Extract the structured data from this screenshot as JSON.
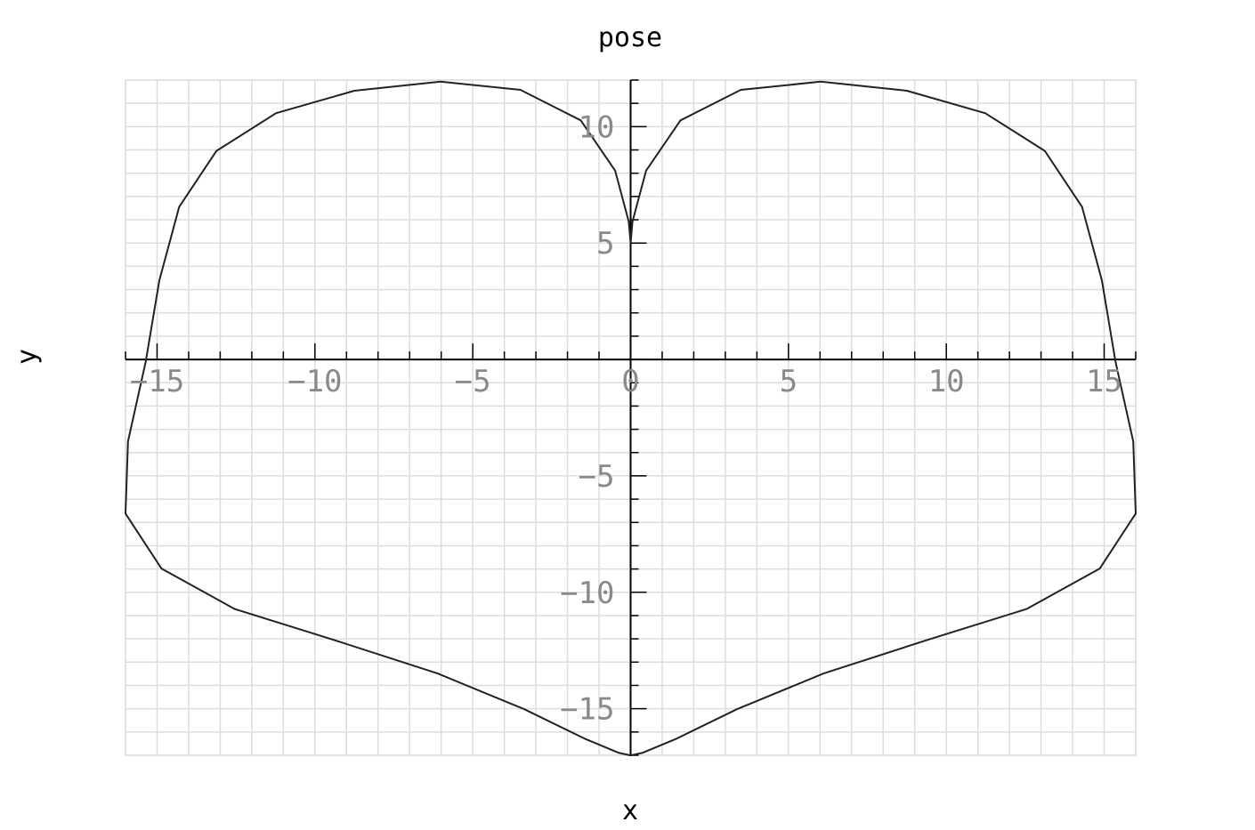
{
  "chart_data": {
    "type": "line",
    "title": "pose",
    "xlabel": "x",
    "ylabel": "y",
    "xlim": [
      -16,
      16
    ],
    "ylim": [
      -17,
      12
    ],
    "xticks": [
      -15,
      -10,
      -5,
      0,
      5,
      10,
      15
    ],
    "yticks": [
      -15,
      -10,
      -5,
      5,
      10
    ],
    "grid": true,
    "minor_grid_step": 1,
    "colors": {
      "curve": "#222222",
      "grid": "#dddddd",
      "axis": "#000000",
      "tick_label": "#8a8a8a"
    },
    "series": [
      {
        "x": [
          0.0,
          0.06,
          0.49,
          1.58,
          3.49,
          6.02,
          8.75,
          11.23,
          13.12,
          14.3,
          14.93,
          15.36,
          15.92,
          16.0,
          14.86,
          12.54,
          9.37,
          6.11,
          3.37,
          1.45,
          0.39,
          0.02,
          0.0,
          -0.02,
          -0.39,
          -1.45,
          -3.37,
          -6.11,
          -9.37,
          -12.54,
          -14.86,
          -16.0,
          -15.92,
          -15.36,
          -14.93,
          -14.3,
          -13.12,
          -11.23,
          -8.75,
          -6.02,
          -3.49,
          -1.58,
          -0.49,
          -0.06,
          0.0
        ],
        "y": [
          5.0,
          5.92,
          8.11,
          10.27,
          11.58,
          11.93,
          11.54,
          10.58,
          8.96,
          6.55,
          3.39,
          -0.1,
          -3.52,
          -6.62,
          -8.98,
          -10.72,
          -12.06,
          -13.49,
          -15.02,
          -16.29,
          -16.89,
          -17.0,
          -17.0,
          -17.0,
          -16.89,
          -16.29,
          -15.02,
          -13.49,
          -12.06,
          -10.72,
          -8.98,
          -6.62,
          -3.52,
          -0.1,
          3.39,
          6.55,
          8.96,
          10.58,
          11.54,
          11.93,
          11.58,
          10.27,
          8.11,
          5.92,
          5.0
        ]
      }
    ]
  }
}
